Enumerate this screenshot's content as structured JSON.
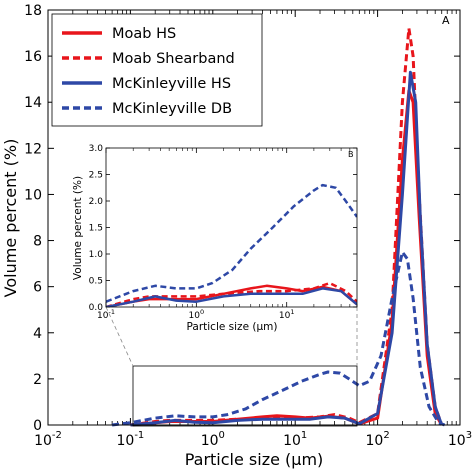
{
  "chart_data": [
    {
      "panel": "A",
      "type": "line",
      "xscale": "log",
      "xlim": [
        0.01,
        1000
      ],
      "ylim": [
        0,
        18
      ],
      "xlabel": "Particle size (μm)",
      "ylabel": "Volume percent (%)",
      "xtick_labels": [
        "10-2",
        "10-1",
        "100",
        "101",
        "102",
        "103"
      ],
      "ytick_labels": [
        "0",
        "2",
        "4",
        "6",
        "8",
        "10",
        "12",
        "14",
        "16",
        "18"
      ],
      "legend_position": "top-left",
      "series": [
        {
          "name": "Moab HS",
          "color": "#e8151b",
          "dash": "solid",
          "points": [
            [
              0.1,
              0.0
            ],
            [
              0.2,
              0.1
            ],
            [
              0.3,
              0.15
            ],
            [
              0.5,
              0.15
            ],
            [
              1,
              0.15
            ],
            [
              2,
              0.25
            ],
            [
              4,
              0.35
            ],
            [
              6,
              0.4
            ],
            [
              10,
              0.35
            ],
            [
              15,
              0.3
            ],
            [
              25,
              0.38
            ],
            [
              40,
              0.3
            ],
            [
              60,
              0.05
            ],
            [
              100,
              0.3
            ],
            [
              150,
              4.5
            ],
            [
              200,
              11.5
            ],
            [
              240,
              14.5
            ],
            [
              270,
              14.0
            ],
            [
              320,
              9.0
            ],
            [
              400,
              3.0
            ],
            [
              500,
              0.5
            ],
            [
              600,
              0.0
            ]
          ]
        },
        {
          "name": "Moab Shearband",
          "color": "#e8151b",
          "dash": "dashed",
          "points": [
            [
              0.1,
              0.0
            ],
            [
              0.2,
              0.15
            ],
            [
              0.3,
              0.2
            ],
            [
              0.5,
              0.2
            ],
            [
              1,
              0.2
            ],
            [
              2,
              0.25
            ],
            [
              5,
              0.3
            ],
            [
              10,
              0.3
            ],
            [
              20,
              0.35
            ],
            [
              30,
              0.45
            ],
            [
              45,
              0.3
            ],
            [
              60,
              0.1
            ],
            [
              100,
              0.5
            ],
            [
              150,
              5.0
            ],
            [
              200,
              14.0
            ],
            [
              240,
              17.2
            ],
            [
              270,
              16.0
            ],
            [
              320,
              10.0
            ],
            [
              400,
              3.5
            ],
            [
              500,
              0.8
            ],
            [
              600,
              0.0
            ]
          ]
        },
        {
          "name": "McKinleyville HS",
          "color": "#2e48a6",
          "dash": "solid",
          "points": [
            [
              0.1,
              0.0
            ],
            [
              0.2,
              0.1
            ],
            [
              0.35,
              0.2
            ],
            [
              0.6,
              0.12
            ],
            [
              1,
              0.1
            ],
            [
              2,
              0.2
            ],
            [
              4,
              0.25
            ],
            [
              8,
              0.25
            ],
            [
              15,
              0.25
            ],
            [
              25,
              0.35
            ],
            [
              40,
              0.3
            ],
            [
              60,
              0.05
            ],
            [
              100,
              0.5
            ],
            [
              150,
              4.0
            ],
            [
              200,
              10.0
            ],
            [
              250,
              15.3
            ],
            [
              290,
              14.0
            ],
            [
              330,
              9.0
            ],
            [
              400,
              3.5
            ],
            [
              500,
              0.8
            ],
            [
              600,
              0.0
            ]
          ]
        },
        {
          "name": "McKinleyville DB",
          "color": "#2e48a6",
          "dash": "dashed",
          "points": [
            [
              0.06,
              0.0
            ],
            [
              0.1,
              0.1
            ],
            [
              0.2,
              0.3
            ],
            [
              0.35,
              0.4
            ],
            [
              0.6,
              0.35
            ],
            [
              1,
              0.35
            ],
            [
              1.5,
              0.45
            ],
            [
              2.5,
              0.7
            ],
            [
              4,
              1.1
            ],
            [
              7,
              1.5
            ],
            [
              12,
              1.9
            ],
            [
              20,
              2.2
            ],
            [
              25,
              2.3
            ],
            [
              35,
              2.25
            ],
            [
              45,
              2.0
            ],
            [
              60,
              1.7
            ],
            [
              80,
              1.9
            ],
            [
              110,
              3.0
            ],
            [
              150,
              5.5
            ],
            [
              200,
              7.5
            ],
            [
              230,
              7.2
            ],
            [
              270,
              5.5
            ],
            [
              330,
              2.5
            ],
            [
              420,
              0.8
            ],
            [
              550,
              0.1
            ],
            [
              650,
              0.0
            ]
          ]
        }
      ]
    },
    {
      "panel": "B",
      "type": "line",
      "xscale": "log",
      "xlim": [
        0.1,
        60
      ],
      "ylim": [
        0,
        3.0
      ],
      "xlabel": "Particle size (μm)",
      "ylabel": "Volume percent (%)",
      "xtick_labels": [
        "10-1",
        "100",
        "101"
      ],
      "ytick_labels": [
        "0.0",
        "0.5",
        "1.0",
        "1.5",
        "2.0",
        "2.5",
        "3.0"
      ],
      "series_source": "same four series as panel A, zoomed"
    }
  ],
  "legend": [
    {
      "label": "Moab HS",
      "color": "#e8151b",
      "dash": "solid"
    },
    {
      "label": "Moab Shearband",
      "color": "#e8151b",
      "dash": "dashed"
    },
    {
      "label": "McKinleyville HS",
      "color": "#2e48a6",
      "dash": "solid"
    },
    {
      "label": "McKinleyville DB",
      "color": "#2e48a6",
      "dash": "dashed"
    }
  ]
}
